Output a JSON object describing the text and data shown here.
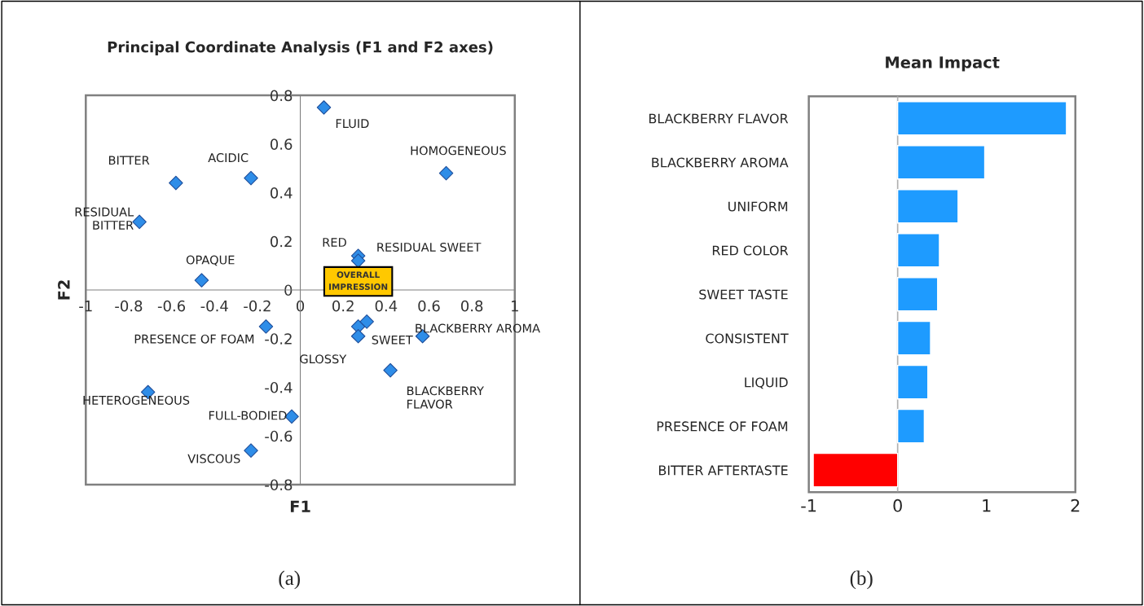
{
  "chart_data": [
    {
      "type": "scatter",
      "title": "Principal Coordinate Analysis (F1 and F2 axes)",
      "xlabel": "F1",
      "ylabel": "F2",
      "xlim": [
        -1,
        1
      ],
      "ylim": [
        -0.8,
        0.8
      ],
      "xticks": [
        -1,
        -0.8,
        -0.6,
        -0.4,
        -0.2,
        0,
        0.2,
        0.4,
        0.6,
        0.8,
        1
      ],
      "yticks": [
        -0.8,
        -0.6,
        -0.4,
        -0.2,
        0,
        0.2,
        0.4,
        0.6,
        0.8
      ],
      "marker": "diamond",
      "grid": false,
      "series": [
        {
          "color": "#2e8de8",
          "x": [
            0.11,
            0.68,
            -0.58,
            -0.23,
            -0.75,
            -0.46,
            0.27,
            0.27,
            -0.16,
            0.27,
            0.31,
            0.27,
            0.57,
            0.42,
            -0.71,
            -0.04,
            -0.23
          ],
          "values": [
            0.75,
            0.48,
            0.44,
            0.46,
            0.28,
            0.04,
            0.14,
            0.12,
            -0.15,
            -0.15,
            -0.13,
            -0.19,
            -0.19,
            -0.33,
            -0.42,
            -0.52,
            -0.66
          ]
        }
      ],
      "annotations": [
        {
          "text": "FLUID",
          "x": 0.11,
          "y": 0.75
        },
        {
          "text": "HOMOGENEOUS",
          "x": 0.68,
          "y": 0.48
        },
        {
          "text": "BITTER",
          "x": -0.58,
          "y": 0.44
        },
        {
          "text": "ACIDIC",
          "x": -0.23,
          "y": 0.46
        },
        {
          "text": "RESIDUAL\nBITTER",
          "x": -0.75,
          "y": 0.28
        },
        {
          "text": "OPAQUE",
          "x": -0.46,
          "y": 0.04
        },
        {
          "text": "RED",
          "x": 0.27,
          "y": 0.14
        },
        {
          "text": "RESIDUAL SWEET",
          "x": 0.27,
          "y": 0.12
        },
        {
          "text": "PRESENCE OF FOAM",
          "x": -0.16,
          "y": -0.15
        },
        {
          "text": "SWEET",
          "x": 0.31,
          "y": -0.13
        },
        {
          "text": "GLOSSY",
          "x": 0.27,
          "y": -0.19
        },
        {
          "text": "BLACKBERRY AROMA",
          "x": 0.57,
          "y": -0.19
        },
        {
          "text": "BLACKBERRY\nFLAVOR",
          "x": 0.42,
          "y": -0.33
        },
        {
          "text": "HETEROGENEOUS",
          "x": -0.71,
          "y": -0.42
        },
        {
          "text": "FULL-BODIED",
          "x": -0.04,
          "y": -0.52
        },
        {
          "text": "VISCOUS",
          "x": -0.23,
          "y": -0.66
        },
        "OVERALL\nIMPRESSION",
        "(a)"
      ]
    },
    {
      "type": "bar",
      "orientation": "horizontal",
      "title": "Mean Impact",
      "categories": [
        "BLACKBERRY FLAVOR",
        "BLACKBERRY AROMA",
        "UNIFORM",
        "RED COLOR",
        "SWEET TASTE",
        "CONSISTENT",
        "LIQUID",
        "PRESENCE OF FOAM",
        "BITTER AFTERTASTE"
      ],
      "values": [
        1.9,
        0.98,
        0.68,
        0.47,
        0.45,
        0.37,
        0.34,
        0.3,
        -0.95
      ],
      "colors": [
        "#1e9bff",
        "#1e9bff",
        "#1e9bff",
        "#1e9bff",
        "#1e9bff",
        "#1e9bff",
        "#1e9bff",
        "#1e9bff",
        "#ff0000"
      ],
      "xlim": [
        -1,
        2
      ],
      "xticks": [
        -1,
        0,
        1,
        2
      ],
      "grid": false,
      "ref_lines": [
        {
          "axis": "x",
          "value": 0,
          "color": "#b0b0b0"
        }
      ],
      "annotations": [
        "(b)"
      ]
    }
  ]
}
